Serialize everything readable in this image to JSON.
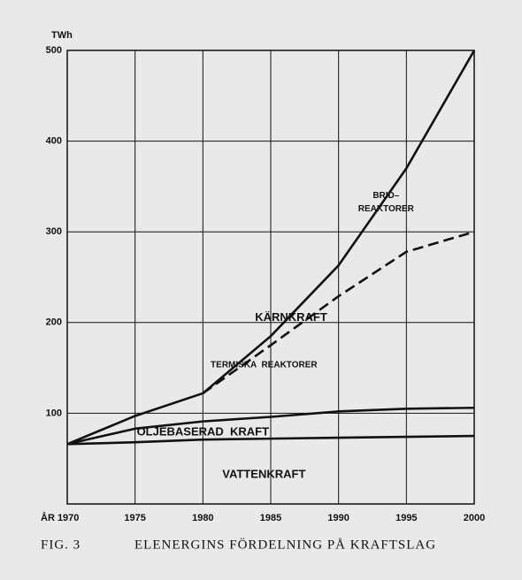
{
  "chart_data": {
    "type": "line",
    "title": "ELENERGINS FÖRDELNING PÅ KRAFTSLAG",
    "figure_label": "FIG. 3",
    "y_unit": "TWh",
    "x": [
      1970,
      1975,
      1980,
      1985,
      1990,
      1995,
      2000
    ],
    "series": [
      {
        "color": "#111111",
        "dashed": false,
        "values": [
          66,
          68,
          71,
          72,
          73,
          74,
          75
        ]
      },
      {
        "color": "#111111",
        "dashed": false,
        "values": [
          66,
          83,
          91,
          96,
          102,
          105,
          106
        ]
      },
      {
        "color": "#111111",
        "dashed": true,
        "values": [
          null,
          null,
          122,
          175,
          229,
          278,
          300
        ]
      },
      {
        "color": "#111111",
        "dashed": false,
        "values": [
          66,
          97,
          122,
          185,
          263,
          370,
          500
        ]
      }
    ],
    "annotations": [
      {
        "text": "BRID–",
        "x": 1993.5,
        "y": 340
      },
      {
        "text": "REAKTORER",
        "x": 1993.5,
        "y": 325
      },
      {
        "text": "KÄRNKRAFT",
        "x": 1986.5,
        "y": 205
      },
      {
        "text": "TERMISKA  REAKTORER",
        "x": 1984.5,
        "y": 153
      },
      {
        "text": "OLJEBASERAD  KRAFT",
        "x": 1980,
        "y": 79
      },
      {
        "text": "VATTENKRAFT",
        "x": 1984.5,
        "y": 32
      }
    ],
    "xlim": [
      1970,
      2000
    ],
    "xticks": [
      {
        "value": 1970,
        "label": "ÅR 1970"
      },
      1975,
      1980,
      1985,
      1990,
      1995,
      2000
    ],
    "ylim": [
      0,
      500
    ],
    "yticks": [
      100,
      200,
      300,
      400,
      500
    ],
    "grid": true
  }
}
